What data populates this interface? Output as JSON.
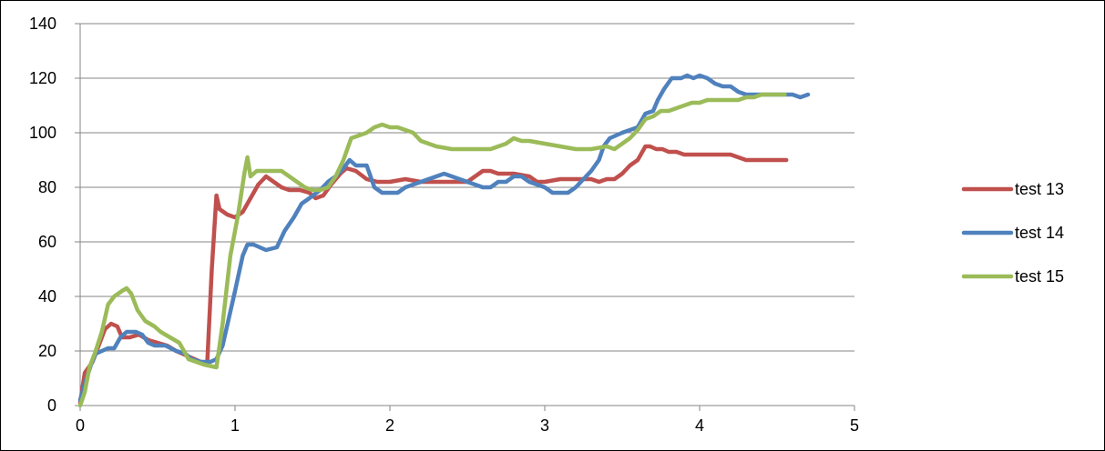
{
  "chart_data": {
    "type": "line",
    "xlim": [
      0,
      5
    ],
    "ylim": [
      0,
      140
    ],
    "x_ticks": [
      "0",
      "1",
      "2",
      "3",
      "4",
      "5"
    ],
    "y_ticks": [
      "0",
      "20",
      "40",
      "60",
      "80",
      "100",
      "120",
      "140"
    ],
    "grid": "horizontal",
    "legend_position": "right",
    "series": [
      {
        "name": "test 13",
        "color": "#C0504D",
        "points": [
          [
            0.0,
            1
          ],
          [
            0.03,
            12
          ],
          [
            0.08,
            16
          ],
          [
            0.12,
            22
          ],
          [
            0.16,
            28
          ],
          [
            0.2,
            30
          ],
          [
            0.24,
            29
          ],
          [
            0.27,
            25
          ],
          [
            0.32,
            25
          ],
          [
            0.38,
            26
          ],
          [
            0.44,
            24
          ],
          [
            0.5,
            23
          ],
          [
            0.56,
            22
          ],
          [
            0.62,
            20
          ],
          [
            0.7,
            18
          ],
          [
            0.78,
            16
          ],
          [
            0.82,
            15
          ],
          [
            0.85,
            50
          ],
          [
            0.88,
            77
          ],
          [
            0.9,
            72
          ],
          [
            0.95,
            70
          ],
          [
            1.0,
            69
          ],
          [
            1.05,
            71
          ],
          [
            1.1,
            76
          ],
          [
            1.15,
            81
          ],
          [
            1.2,
            84
          ],
          [
            1.25,
            82
          ],
          [
            1.3,
            80
          ],
          [
            1.35,
            79
          ],
          [
            1.42,
            79
          ],
          [
            1.48,
            78
          ],
          [
            1.52,
            76
          ],
          [
            1.57,
            77
          ],
          [
            1.62,
            81
          ],
          [
            1.68,
            85
          ],
          [
            1.72,
            87
          ],
          [
            1.78,
            86
          ],
          [
            1.85,
            83
          ],
          [
            1.92,
            82
          ],
          [
            2.0,
            82
          ],
          [
            2.1,
            83
          ],
          [
            2.2,
            82
          ],
          [
            2.3,
            82
          ],
          [
            2.4,
            82
          ],
          [
            2.5,
            82
          ],
          [
            2.55,
            84
          ],
          [
            2.6,
            86
          ],
          [
            2.65,
            86
          ],
          [
            2.7,
            85
          ],
          [
            2.8,
            85
          ],
          [
            2.9,
            84
          ],
          [
            2.95,
            82
          ],
          [
            3.0,
            82
          ],
          [
            3.1,
            83
          ],
          [
            3.2,
            83
          ],
          [
            3.3,
            83
          ],
          [
            3.35,
            82
          ],
          [
            3.4,
            83
          ],
          [
            3.45,
            83
          ],
          [
            3.5,
            85
          ],
          [
            3.55,
            88
          ],
          [
            3.6,
            90
          ],
          [
            3.65,
            95
          ],
          [
            3.68,
            95
          ],
          [
            3.72,
            94
          ],
          [
            3.76,
            94
          ],
          [
            3.8,
            93
          ],
          [
            3.85,
            93
          ],
          [
            3.9,
            92
          ],
          [
            3.95,
            92
          ],
          [
            4.0,
            92
          ],
          [
            4.1,
            92
          ],
          [
            4.2,
            92
          ],
          [
            4.25,
            91
          ],
          [
            4.3,
            90
          ],
          [
            4.4,
            90
          ],
          [
            4.5,
            90
          ],
          [
            4.56,
            90
          ]
        ]
      },
      {
        "name": "test 14",
        "color": "#4F81BD",
        "points": [
          [
            0.0,
            2
          ],
          [
            0.03,
            8
          ],
          [
            0.07,
            15
          ],
          [
            0.1,
            19
          ],
          [
            0.14,
            20
          ],
          [
            0.18,
            21
          ],
          [
            0.22,
            21
          ],
          [
            0.26,
            25
          ],
          [
            0.3,
            27
          ],
          [
            0.36,
            27
          ],
          [
            0.4,
            26
          ],
          [
            0.44,
            23
          ],
          [
            0.48,
            22
          ],
          [
            0.55,
            22
          ],
          [
            0.62,
            20
          ],
          [
            0.68,
            19
          ],
          [
            0.72,
            17
          ],
          [
            0.78,
            16
          ],
          [
            0.84,
            16
          ],
          [
            0.88,
            17
          ],
          [
            0.92,
            22
          ],
          [
            0.96,
            32
          ],
          [
            1.0,
            42
          ],
          [
            1.05,
            55
          ],
          [
            1.08,
            59
          ],
          [
            1.12,
            59
          ],
          [
            1.2,
            57
          ],
          [
            1.27,
            58
          ],
          [
            1.32,
            64
          ],
          [
            1.38,
            69
          ],
          [
            1.43,
            74
          ],
          [
            1.48,
            76
          ],
          [
            1.55,
            79
          ],
          [
            1.6,
            82
          ],
          [
            1.65,
            84
          ],
          [
            1.7,
            87
          ],
          [
            1.74,
            90
          ],
          [
            1.78,
            88
          ],
          [
            1.85,
            88
          ],
          [
            1.9,
            80
          ],
          [
            1.95,
            78
          ],
          [
            2.05,
            78
          ],
          [
            2.1,
            80
          ],
          [
            2.2,
            82
          ],
          [
            2.3,
            84
          ],
          [
            2.35,
            85
          ],
          [
            2.4,
            84
          ],
          [
            2.5,
            82
          ],
          [
            2.55,
            81
          ],
          [
            2.6,
            80
          ],
          [
            2.65,
            80
          ],
          [
            2.7,
            82
          ],
          [
            2.75,
            82
          ],
          [
            2.8,
            84
          ],
          [
            2.85,
            84
          ],
          [
            2.9,
            82
          ],
          [
            3.0,
            80
          ],
          [
            3.05,
            78
          ],
          [
            3.15,
            78
          ],
          [
            3.2,
            80
          ],
          [
            3.25,
            83
          ],
          [
            3.3,
            86
          ],
          [
            3.35,
            90
          ],
          [
            3.38,
            95
          ],
          [
            3.42,
            98
          ],
          [
            3.5,
            100
          ],
          [
            3.55,
            101
          ],
          [
            3.6,
            102
          ],
          [
            3.65,
            107
          ],
          [
            3.7,
            108
          ],
          [
            3.73,
            112
          ],
          [
            3.77,
            116
          ],
          [
            3.82,
            120
          ],
          [
            3.88,
            120
          ],
          [
            3.92,
            121
          ],
          [
            3.96,
            120
          ],
          [
            4.0,
            121
          ],
          [
            4.05,
            120
          ],
          [
            4.1,
            118
          ],
          [
            4.15,
            117
          ],
          [
            4.2,
            117
          ],
          [
            4.25,
            115
          ],
          [
            4.3,
            114
          ],
          [
            4.4,
            114
          ],
          [
            4.5,
            114
          ],
          [
            4.6,
            114
          ],
          [
            4.65,
            113
          ],
          [
            4.7,
            114
          ]
        ]
      },
      {
        "name": "test 15",
        "color": "#9BBB59",
        "points": [
          [
            0.0,
            0
          ],
          [
            0.03,
            5
          ],
          [
            0.06,
            14
          ],
          [
            0.1,
            20
          ],
          [
            0.14,
            27
          ],
          [
            0.18,
            37
          ],
          [
            0.22,
            40
          ],
          [
            0.27,
            42
          ],
          [
            0.3,
            43
          ],
          [
            0.33,
            41
          ],
          [
            0.37,
            35
          ],
          [
            0.42,
            31
          ],
          [
            0.48,
            29
          ],
          [
            0.52,
            27
          ],
          [
            0.58,
            25
          ],
          [
            0.64,
            23
          ],
          [
            0.7,
            17
          ],
          [
            0.75,
            16
          ],
          [
            0.8,
            15
          ],
          [
            0.88,
            14
          ],
          [
            0.92,
            30
          ],
          [
            0.97,
            55
          ],
          [
            1.02,
            70
          ],
          [
            1.06,
            85
          ],
          [
            1.08,
            91
          ],
          [
            1.1,
            84
          ],
          [
            1.14,
            86
          ],
          [
            1.2,
            86
          ],
          [
            1.3,
            86
          ],
          [
            1.35,
            84
          ],
          [
            1.4,
            82
          ],
          [
            1.45,
            80
          ],
          [
            1.5,
            79
          ],
          [
            1.55,
            79
          ],
          [
            1.6,
            80
          ],
          [
            1.65,
            84
          ],
          [
            1.7,
            90
          ],
          [
            1.75,
            98
          ],
          [
            1.8,
            99
          ],
          [
            1.85,
            100
          ],
          [
            1.9,
            102
          ],
          [
            1.95,
            103
          ],
          [
            2.0,
            102
          ],
          [
            2.05,
            102
          ],
          [
            2.1,
            101
          ],
          [
            2.15,
            100
          ],
          [
            2.2,
            97
          ],
          [
            2.3,
            95
          ],
          [
            2.4,
            94
          ],
          [
            2.5,
            94
          ],
          [
            2.6,
            94
          ],
          [
            2.65,
            94
          ],
          [
            2.7,
            95
          ],
          [
            2.75,
            96
          ],
          [
            2.8,
            98
          ],
          [
            2.85,
            97
          ],
          [
            2.9,
            97
          ],
          [
            3.0,
            96
          ],
          [
            3.1,
            95
          ],
          [
            3.2,
            94
          ],
          [
            3.3,
            94
          ],
          [
            3.4,
            95
          ],
          [
            3.45,
            94
          ],
          [
            3.5,
            96
          ],
          [
            3.55,
            98
          ],
          [
            3.6,
            101
          ],
          [
            3.65,
            105
          ],
          [
            3.7,
            106
          ],
          [
            3.75,
            108
          ],
          [
            3.8,
            108
          ],
          [
            3.85,
            109
          ],
          [
            3.9,
            110
          ],
          [
            3.95,
            111
          ],
          [
            4.0,
            111
          ],
          [
            4.05,
            112
          ],
          [
            4.1,
            112
          ],
          [
            4.2,
            112
          ],
          [
            4.25,
            112
          ],
          [
            4.3,
            113
          ],
          [
            4.35,
            113
          ],
          [
            4.4,
            114
          ],
          [
            4.5,
            114
          ],
          [
            4.55,
            114
          ]
        ]
      }
    ]
  }
}
